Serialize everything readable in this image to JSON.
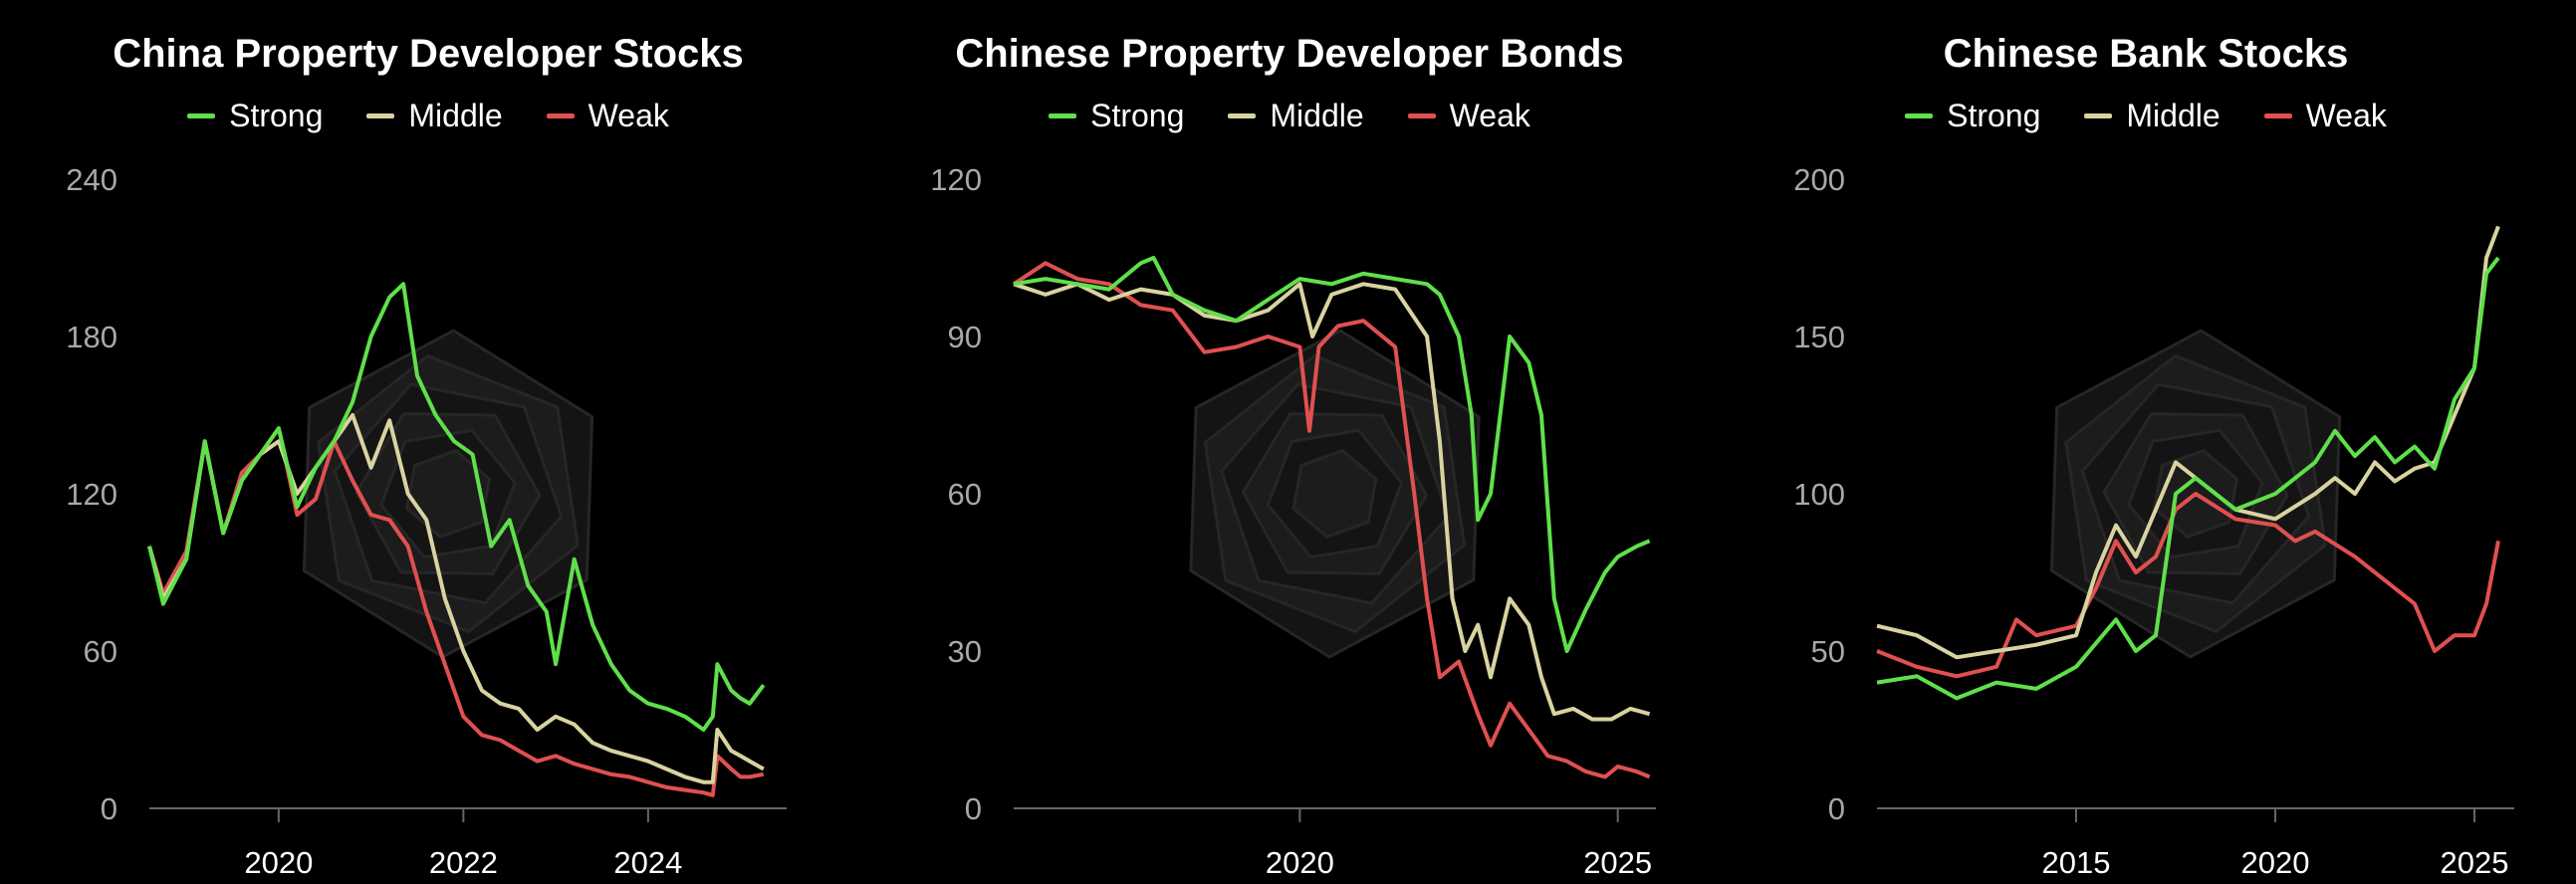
{
  "colors": {
    "Strong": "#5fe04a",
    "Middle": "#d8d3a0",
    "Weak": "#e05050",
    "axis": "#666666",
    "watermark": "#222222"
  },
  "chart_data": [
    {
      "type": "line",
      "title": "China Property Developer Stocks",
      "xlim": [
        2018.6,
        2025.5
      ],
      "ylim": [
        0,
        240
      ],
      "yticks": [
        0,
        60,
        120,
        180,
        240
      ],
      "xticks": [
        2020,
        2022,
        2024
      ],
      "series": [
        {
          "name": "Strong",
          "x": [
            2018.6,
            2018.75,
            2019.0,
            2019.2,
            2019.4,
            2019.6,
            2019.8,
            2020.0,
            2020.2,
            2020.4,
            2020.6,
            2020.8,
            2021.0,
            2021.2,
            2021.35,
            2021.5,
            2021.7,
            2021.9,
            2022.1,
            2022.3,
            2022.5,
            2022.7,
            2022.9,
            2023.0,
            2023.2,
            2023.4,
            2023.6,
            2023.8,
            2024.0,
            2024.2,
            2024.4,
            2024.6,
            2024.7,
            2024.75,
            2024.9,
            2025.0,
            2025.1,
            2025.25
          ],
          "y": [
            100,
            78,
            95,
            140,
            105,
            125,
            135,
            145,
            115,
            130,
            140,
            155,
            180,
            195,
            200,
            165,
            150,
            140,
            135,
            100,
            110,
            85,
            75,
            55,
            95,
            70,
            55,
            45,
            40,
            38,
            35,
            30,
            35,
            55,
            45,
            42,
            40,
            47
          ]
        },
        {
          "name": "Middle",
          "x": [
            2018.6,
            2018.75,
            2019.0,
            2019.2,
            2019.4,
            2019.6,
            2019.8,
            2020.0,
            2020.2,
            2020.4,
            2020.6,
            2020.8,
            2021.0,
            2021.2,
            2021.4,
            2021.6,
            2021.8,
            2022.0,
            2022.2,
            2022.4,
            2022.6,
            2022.8,
            2023.0,
            2023.2,
            2023.4,
            2023.6,
            2023.8,
            2024.0,
            2024.2,
            2024.4,
            2024.6,
            2024.7,
            2024.75,
            2024.9,
            2025.0,
            2025.1,
            2025.25
          ],
          "y": [
            100,
            80,
            95,
            140,
            105,
            125,
            135,
            140,
            120,
            130,
            140,
            150,
            130,
            148,
            120,
            110,
            80,
            60,
            45,
            40,
            38,
            30,
            35,
            32,
            25,
            22,
            20,
            18,
            15,
            12,
            10,
            10,
            30,
            22,
            20,
            18,
            15
          ]
        },
        {
          "name": "Weak",
          "x": [
            2018.6,
            2018.75,
            2019.0,
            2019.2,
            2019.4,
            2019.6,
            2019.8,
            2020.0,
            2020.2,
            2020.4,
            2020.6,
            2020.8,
            2021.0,
            2021.2,
            2021.4,
            2021.6,
            2021.8,
            2022.0,
            2022.2,
            2022.4,
            2022.6,
            2022.8,
            2023.0,
            2023.2,
            2023.4,
            2023.6,
            2023.8,
            2024.0,
            2024.2,
            2024.4,
            2024.6,
            2024.7,
            2024.75,
            2024.9,
            2025.0,
            2025.1,
            2025.25
          ],
          "y": [
            100,
            82,
            98,
            140,
            105,
            128,
            135,
            145,
            112,
            118,
            140,
            125,
            112,
            110,
            100,
            75,
            55,
            35,
            28,
            26,
            22,
            18,
            20,
            17,
            15,
            13,
            12,
            10,
            8,
            7,
            6,
            5,
            20,
            15,
            12,
            12,
            13
          ]
        }
      ]
    },
    {
      "type": "line",
      "title": "Chinese Property Developer Bonds",
      "xlim": [
        2015.5,
        2025.6
      ],
      "ylim": [
        0,
        120
      ],
      "yticks": [
        0,
        30,
        60,
        90,
        120
      ],
      "xticks": [
        2020,
        2025
      ],
      "series": [
        {
          "name": "Strong",
          "x": [
            2015.5,
            2016.0,
            2016.5,
            2017.0,
            2017.5,
            2017.7,
            2018.0,
            2018.5,
            2019.0,
            2019.5,
            2020.0,
            2020.5,
            2021.0,
            2021.5,
            2022.0,
            2022.2,
            2022.5,
            2022.7,
            2022.8,
            2023.0,
            2023.3,
            2023.6,
            2023.8,
            2024.0,
            2024.2,
            2024.5,
            2024.8,
            2025.0,
            2025.3,
            2025.5
          ],
          "y": [
            100,
            101,
            100,
            99,
            104,
            105,
            98,
            95,
            93,
            97,
            101,
            100,
            102,
            101,
            100,
            98,
            90,
            75,
            55,
            60,
            90,
            85,
            75,
            40,
            30,
            38,
            45,
            48,
            50,
            51
          ]
        },
        {
          "name": "Middle",
          "x": [
            2015.5,
            2016.0,
            2016.5,
            2017.0,
            2017.5,
            2018.0,
            2018.5,
            2019.0,
            2019.5,
            2020.0,
            2020.2,
            2020.5,
            2021.0,
            2021.5,
            2022.0,
            2022.2,
            2022.4,
            2022.6,
            2022.8,
            2023.0,
            2023.3,
            2023.6,
            2023.8,
            2024.0,
            2024.3,
            2024.6,
            2024.9,
            2025.2,
            2025.5
          ],
          "y": [
            100,
            98,
            100,
            97,
            99,
            98,
            94,
            93,
            95,
            100,
            90,
            98,
            100,
            99,
            90,
            70,
            40,
            30,
            35,
            25,
            40,
            35,
            25,
            18,
            19,
            17,
            17,
            19,
            18
          ]
        },
        {
          "name": "Weak",
          "x": [
            2015.5,
            2016.0,
            2016.5,
            2017.0,
            2017.5,
            2018.0,
            2018.5,
            2019.0,
            2019.5,
            2020.0,
            2020.15,
            2020.3,
            2020.6,
            2021.0,
            2021.5,
            2021.8,
            2022.0,
            2022.2,
            2022.5,
            2022.8,
            2023.0,
            2023.3,
            2023.6,
            2023.9,
            2024.2,
            2024.5,
            2024.8,
            2025.0,
            2025.3,
            2025.5
          ],
          "y": [
            100,
            104,
            101,
            100,
            96,
            95,
            87,
            88,
            90,
            88,
            72,
            88,
            92,
            93,
            88,
            60,
            40,
            25,
            28,
            18,
            12,
            20,
            15,
            10,
            9,
            7,
            6,
            8,
            7,
            6
          ]
        }
      ]
    },
    {
      "type": "line",
      "title": "Chinese Bank Stocks",
      "xlim": [
        2010.0,
        2026.0
      ],
      "ylim": [
        0,
        200
      ],
      "yticks": [
        0,
        50,
        100,
        150,
        200
      ],
      "xticks": [
        2015,
        2020,
        2025
      ],
      "series": [
        {
          "name": "Strong",
          "x": [
            2010.0,
            2011.0,
            2012.0,
            2013.0,
            2014.0,
            2015.0,
            2016.0,
            2016.5,
            2017.0,
            2017.5,
            2018.0,
            2019.0,
            2020.0,
            2021.0,
            2021.5,
            2022.0,
            2022.5,
            2023.0,
            2023.5,
            2024.0,
            2024.5,
            2025.0,
            2025.3,
            2025.6
          ],
          "y": [
            40,
            42,
            35,
            40,
            38,
            45,
            60,
            50,
            55,
            100,
            105,
            95,
            100,
            110,
            120,
            112,
            118,
            110,
            115,
            108,
            130,
            140,
            170,
            175
          ]
        },
        {
          "name": "Middle",
          "x": [
            2010.0,
            2011.0,
            2012.0,
            2013.0,
            2014.0,
            2015.0,
            2015.5,
            2016.0,
            2016.5,
            2017.0,
            2017.5,
            2018.0,
            2019.0,
            2020.0,
            2021.0,
            2021.5,
            2022.0,
            2022.5,
            2023.0,
            2023.5,
            2024.0,
            2024.5,
            2025.0,
            2025.3,
            2025.6
          ],
          "y": [
            58,
            55,
            48,
            50,
            52,
            55,
            75,
            90,
            80,
            95,
            110,
            105,
            95,
            92,
            100,
            105,
            100,
            110,
            104,
            108,
            110,
            125,
            140,
            175,
            185
          ]
        },
        {
          "name": "Weak",
          "x": [
            2010.0,
            2011.0,
            2012.0,
            2013.0,
            2013.5,
            2014.0,
            2015.0,
            2015.5,
            2016.0,
            2016.5,
            2017.0,
            2017.5,
            2018.0,
            2019.0,
            2020.0,
            2020.5,
            2021.0,
            2022.0,
            2023.0,
            2023.5,
            2024.0,
            2024.5,
            2025.0,
            2025.3,
            2025.6
          ],
          "y": [
            50,
            45,
            42,
            45,
            60,
            55,
            58,
            70,
            85,
            75,
            80,
            95,
            100,
            92,
            90,
            85,
            88,
            80,
            70,
            65,
            50,
            55,
            55,
            65,
            85
          ]
        }
      ]
    }
  ]
}
